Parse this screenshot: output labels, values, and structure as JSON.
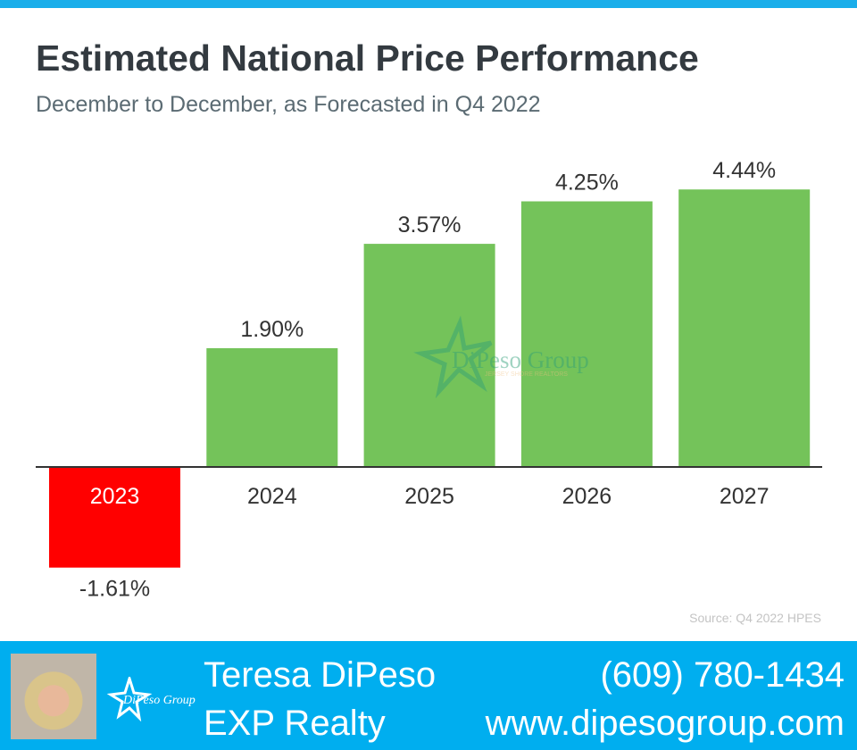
{
  "header": {
    "title": "Estimated National Price Performance",
    "subtitle": "December to December, as Forecasted in Q4 2022"
  },
  "chart_data": {
    "type": "bar",
    "title": "Estimated National Price Performance",
    "subtitle": "December to December, as Forecasted in Q4 2022",
    "categories": [
      "2023",
      "2024",
      "2025",
      "2026",
      "2027"
    ],
    "values": [
      -1.61,
      1.9,
      3.57,
      4.25,
      4.44
    ],
    "labels": [
      "-1.61%",
      "1.90%",
      "3.57%",
      "4.25%",
      "4.44%"
    ],
    "xlabel": "",
    "ylabel": "",
    "ylim": [
      -1.61,
      4.44
    ],
    "grid": false,
    "colors": {
      "positive": "#74c35a",
      "negative": "#ff0000"
    },
    "source": "Source: Q4 2022 HPES"
  },
  "watermark": {
    "text": "DiPeso Group",
    "tagline": "JERSEY SHORE REALTORS"
  },
  "footer": {
    "name": "Teresa DiPeso",
    "company": "EXP Realty",
    "phone": "(609) 780-1434",
    "website": "www.dipesogroup.com",
    "logo_text": "DiPeso Group"
  }
}
